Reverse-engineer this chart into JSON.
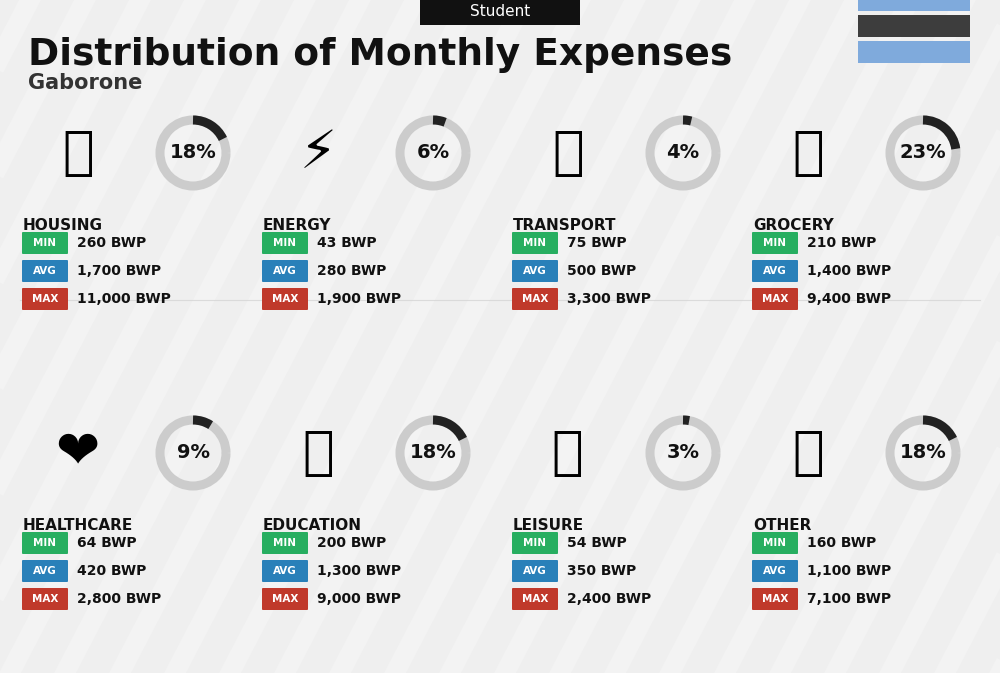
{
  "title": "Distribution of Monthly Expenses",
  "subtitle": "Student",
  "location": "Gaborone",
  "bg_color": "#efefef",
  "flag_colors": [
    "#7faadc",
    "#3d3d3d",
    "#7faadc"
  ],
  "categories": [
    {
      "name": "HOUSING",
      "pct": 18,
      "min": "260 BWP",
      "avg": "1,700 BWP",
      "max": "11,000 BWP",
      "icon": "🏗",
      "col": 0,
      "row": 0
    },
    {
      "name": "ENERGY",
      "pct": 6,
      "min": "43 BWP",
      "avg": "280 BWP",
      "max": "1,900 BWP",
      "icon": "⚡",
      "col": 1,
      "row": 0
    },
    {
      "name": "TRANSPORT",
      "pct": 4,
      "min": "75 BWP",
      "avg": "500 BWP",
      "max": "3,300 BWP",
      "icon": "🚌",
      "col": 2,
      "row": 0
    },
    {
      "name": "GROCERY",
      "pct": 23,
      "min": "210 BWP",
      "avg": "1,400 BWP",
      "max": "9,400 BWP",
      "icon": "🛒",
      "col": 3,
      "row": 0
    },
    {
      "name": "HEALTHCARE",
      "pct": 9,
      "min": "64 BWP",
      "avg": "420 BWP",
      "max": "2,800 BWP",
      "icon": "❤",
      "col": 0,
      "row": 1
    },
    {
      "name": "EDUCATION",
      "pct": 18,
      "min": "200 BWP",
      "avg": "1,300 BWP",
      "max": "9,000 BWP",
      "icon": "🎓",
      "col": 1,
      "row": 1
    },
    {
      "name": "LEISURE",
      "pct": 3,
      "min": "54 BWP",
      "avg": "350 BWP",
      "max": "2,400 BWP",
      "icon": "🛍",
      "col": 2,
      "row": 1
    },
    {
      "name": "OTHER",
      "pct": 18,
      "min": "160 BWP",
      "avg": "1,100 BWP",
      "max": "7,100 BWP",
      "icon": "👛",
      "col": 3,
      "row": 1
    }
  ],
  "min_color": "#27ae60",
  "avg_color": "#2980b9",
  "max_color": "#c0392b",
  "white": "#ffffff",
  "dark": "#111111",
  "label_fontsize": 7.5,
  "value_fontsize": 10,
  "cat_fontsize": 11,
  "pct_fontsize": 14
}
